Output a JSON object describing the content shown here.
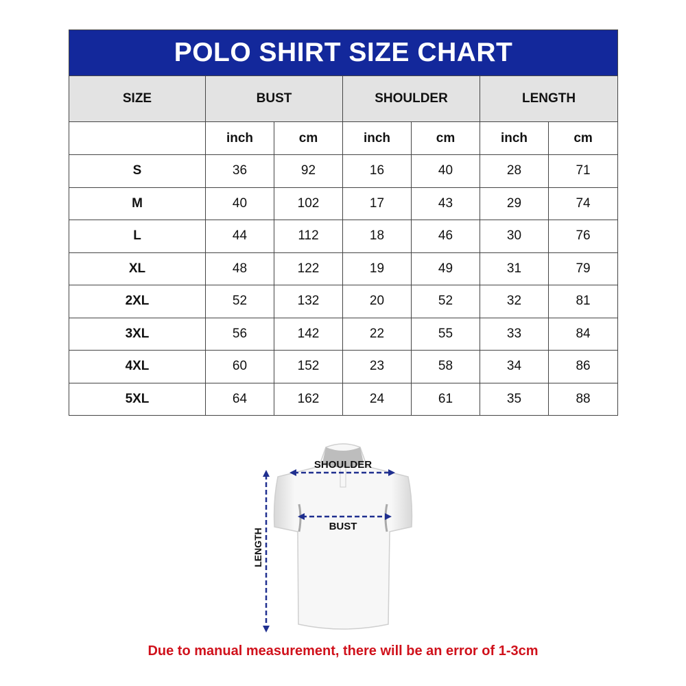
{
  "title": "POLO SHIRT SIZE CHART",
  "headers": [
    "SIZE",
    "BUST",
    "SHOULDER",
    "LENGTH"
  ],
  "units": [
    "inch",
    "cm",
    "inch",
    "cm",
    "inch",
    "cm"
  ],
  "rows": [
    {
      "size": "S",
      "values": [
        "36",
        "92",
        "16",
        "40",
        "28",
        "71"
      ]
    },
    {
      "size": "M",
      "values": [
        "40",
        "102",
        "17",
        "43",
        "29",
        "74"
      ]
    },
    {
      "size": "L",
      "values": [
        "44",
        "112",
        "18",
        "46",
        "30",
        "76"
      ]
    },
    {
      "size": "XL",
      "values": [
        "48",
        "122",
        "19",
        "49",
        "31",
        "79"
      ]
    },
    {
      "size": "2XL",
      "values": [
        "52",
        "132",
        "20",
        "52",
        "32",
        "81"
      ]
    },
    {
      "size": "3XL",
      "values": [
        "56",
        "142",
        "22",
        "55",
        "33",
        "84"
      ]
    },
    {
      "size": "4XL",
      "values": [
        "60",
        "152",
        "23",
        "58",
        "34",
        "86"
      ]
    },
    {
      "size": "5XL",
      "values": [
        "64",
        "162",
        "24",
        "61",
        "35",
        "88"
      ]
    }
  ],
  "diagram": {
    "shoulder": "SHOULDER",
    "bust": "BUST",
    "length": "LENGTH"
  },
  "note": "Due to manual measurement, there will be an error of 1-3cm",
  "colors": {
    "title_bg": "#13289b",
    "header_bg": "#e3e3e3",
    "arrow": "#1f2f8f",
    "note": "#d0111b"
  }
}
